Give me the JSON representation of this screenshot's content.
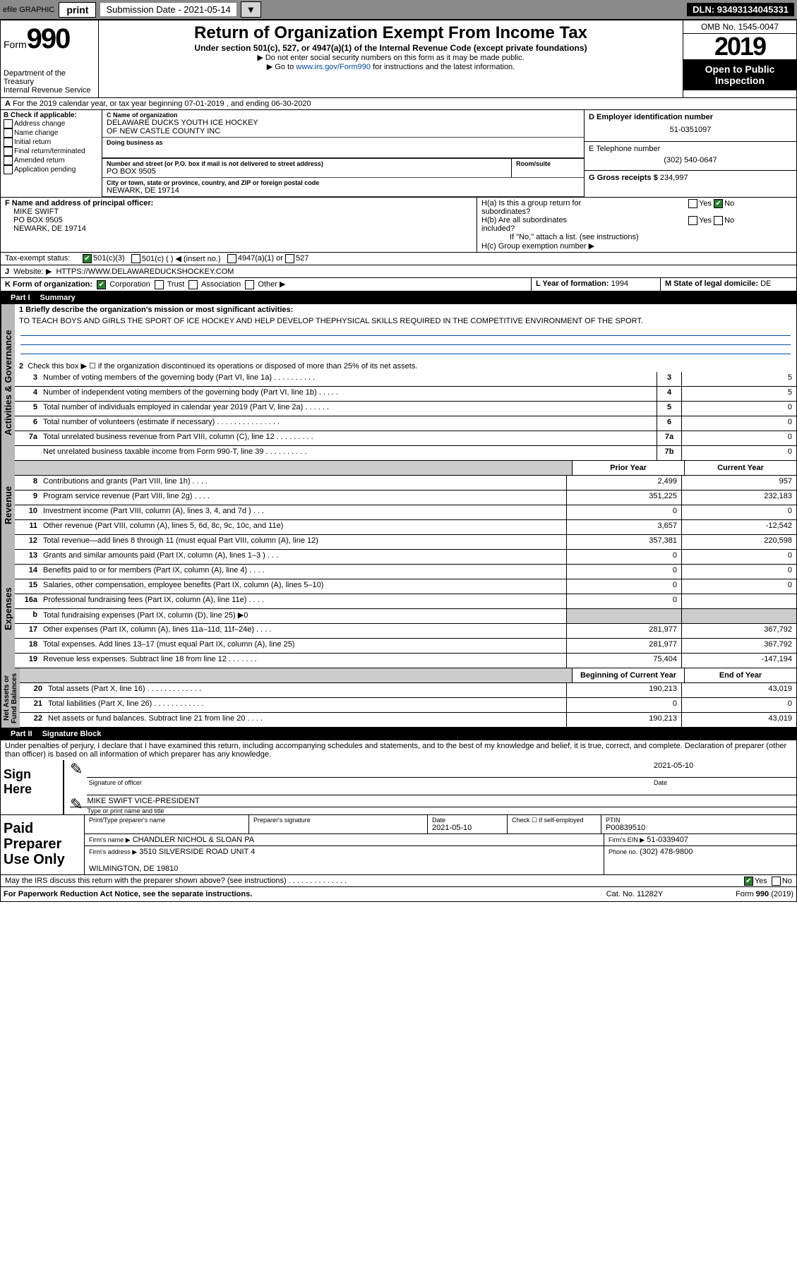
{
  "toolbar": {
    "efile": "efile GRAPHIC",
    "print": "print",
    "sub_label": "Submission Date - 2021-05-14",
    "dln": "DLN: 93493134045331"
  },
  "hdr": {
    "form_word": "Form",
    "form_num": "990",
    "title": "Return of Organization Exempt From Income Tax",
    "sub1": "Under section 501(c), 527, or 4947(a)(1) of the Internal Revenue Code (except private foundations)",
    "sub2": "▶ Do not enter social security numbers on this form as it may be made public.",
    "sub3_pre": "▶ Go to ",
    "sub3_link": "www.irs.gov/Form990",
    "sub3_post": " for instructions and the latest information.",
    "dept": "Department of the Treasury\nInternal Revenue Service",
    "omb": "OMB No. 1545-0047",
    "year": "2019",
    "open": "Open to Public\nInspection"
  },
  "A": {
    "text": "For the 2019 calendar year, or tax year beginning 07-01-2019    , and ending 06-30-2020"
  },
  "B": {
    "label": "B Check if applicable:",
    "items": [
      "Address change",
      "Name change",
      "Initial return",
      "Final return/terminated",
      "Amended return",
      "Application pending"
    ]
  },
  "C": {
    "name_lbl": "C Name of organization",
    "name": "DELAWARE DUCKS YOUTH ICE HOCKEY\nOF NEW CASTLE COUNTY INC",
    "dba_lbl": "Doing business as",
    "dba": "",
    "addr_lbl": "Number and street (or P.O. box if mail is not delivered to street address)",
    "room_lbl": "Room/suite",
    "addr": "PO BOX 9505",
    "city_lbl": "City or town, state or province, country, and ZIP or foreign postal code",
    "city": "NEWARK, DE  19714"
  },
  "D": {
    "lbl": "D Employer identification number",
    "val": "51-0351097"
  },
  "E": {
    "lbl": "E Telephone number",
    "val": "(302) 540-0647"
  },
  "G": {
    "lbl": "G Gross receipts $",
    "val": "234,997"
  },
  "F": {
    "lbl": "F  Name and address of principal officer:",
    "val": "MIKE SWIFT\nPO BOX 9505\nNEWARK, DE  19714"
  },
  "H": {
    "a": "H(a)  Is this a group return for\n         subordinates?",
    "b": "H(b)  Are all subordinates\n         included?",
    "note": "If \"No,\" attach a list. (see instructions)",
    "c": "H(c)  Group exemption number ▶"
  },
  "I": {
    "lbl": "Tax-exempt status:",
    "opts": [
      "501(c)(3)",
      "501(c) (  ) ◀ (insert no.)",
      "4947(a)(1) or",
      "527"
    ]
  },
  "J": {
    "lbl": "Website: ▶",
    "val": "HTTPS://WWW.DELAWAREDUCKSHOCKEY.COM"
  },
  "K": {
    "lbl": "K Form of organization:",
    "opts": [
      "Corporation",
      "Trust",
      "Association",
      "Other ▶"
    ]
  },
  "L": {
    "lbl": "L Year of formation:",
    "val": "1994"
  },
  "M": {
    "lbl": "M State of legal domicile:",
    "val": "DE"
  },
  "part1": {
    "num": "Part I",
    "title": "Summary"
  },
  "p1": {
    "l1": "1  Briefly describe the organization's mission or most significant activities:",
    "mission": "TO TEACH BOYS AND GIRLS THE SPORT OF ICE HOCKEY AND HELP DEVELOP THEPHYSICAL SKILLS REQUIRED IN THE COMPETITIVE ENVIRONMENT OF THE SPORT.",
    "l2": "Check this box ▶ ☐  if the organization discontinued its operations or disposed of more than 25% of its net assets.",
    "rows": [
      {
        "n": "3",
        "t": "Number of voting members of the governing body (Part VI, line 1a)  .   .   .   .   .   .   .   .   .   .",
        "b": "3",
        "v": "5"
      },
      {
        "n": "4",
        "t": "Number of independent voting members of the governing body (Part VI, line 1b)  .   .   .   .   .",
        "b": "4",
        "v": "5"
      },
      {
        "n": "5",
        "t": "Total number of individuals employed in calendar year 2019 (Part V, line 2a)  .   .   .   .   .   .",
        "b": "5",
        "v": "0"
      },
      {
        "n": "6",
        "t": "Total number of volunteers (estimate if necessary)    .   .   .   .   .   .   .   .   .   .   .   .   .   .   .",
        "b": "6",
        "v": "0"
      },
      {
        "n": "7a",
        "t": "Total unrelated business revenue from Part VIII, column (C), line 12   .   .   .   .   .   .   .   .   .",
        "b": "7a",
        "v": "0"
      },
      {
        "n": "",
        "t": "Net unrelated business taxable income from Form 990-T, line 39    .   .   .   .   .   .   .   .   .   .",
        "b": "7b",
        "v": "0"
      }
    ],
    "hdrs": {
      "prior": "Prior Year",
      "curr": "Current Year"
    },
    "rev": [
      {
        "n": "8",
        "t": "Contributions and grants (Part VIII, line 1h)   .    .   .   .",
        "p": "2,499",
        "c": "957"
      },
      {
        "n": "9",
        "t": "Program service revenue (Part VIII, line 2g)   .    .   .   .",
        "p": "351,225",
        "c": "232,183"
      },
      {
        "n": "10",
        "t": "Investment income (Part VIII, column (A), lines 3, 4, and 7d )    .    .    .",
        "p": "0",
        "c": "0"
      },
      {
        "n": "11",
        "t": "Other revenue (Part VIII, column (A), lines 5, 6d, 8c, 9c, 10c, and 11e)",
        "p": "3,657",
        "c": "-12,542"
      },
      {
        "n": "12",
        "t": "Total revenue—add lines 8 through 11 (must equal Part VIII, column (A), line 12)",
        "p": "357,381",
        "c": "220,598"
      }
    ],
    "exp": [
      {
        "n": "13",
        "t": "Grants and similar amounts paid (Part IX, column (A), lines 1–3 )   .    .    .",
        "p": "0",
        "c": "0"
      },
      {
        "n": "14",
        "t": "Benefits paid to or for members (Part IX, column (A), line 4)   .    .   .   .",
        "p": "0",
        "c": "0"
      },
      {
        "n": "15",
        "t": "Salaries, other compensation, employee benefits (Part IX, column (A), lines 5–10)",
        "p": "0",
        "c": "0"
      },
      {
        "n": "16a",
        "t": "Professional fundraising fees (Part IX, column (A), line 11e)   .    .   .   .",
        "p": "0",
        "c": ""
      },
      {
        "n": "b",
        "t": "Total fundraising expenses (Part IX, column (D), line 25) ▶0",
        "p": "",
        "c": "",
        "grey": true
      },
      {
        "n": "17",
        "t": "Other expenses (Part IX, column (A), lines 11a–11d, 11f–24e)   .    .   .   .",
        "p": "281,977",
        "c": "367,792"
      },
      {
        "n": "18",
        "t": "Total expenses. Add lines 13–17 (must equal Part IX, column (A), line 25)",
        "p": "281,977",
        "c": "367,792"
      },
      {
        "n": "19",
        "t": "Revenue less expenses. Subtract line 18 from line 12  .   .   .   .   .   .   .",
        "p": "75,404",
        "c": "-147,194"
      }
    ],
    "hdrs2": {
      "beg": "Beginning of Current Year",
      "end": "End of Year"
    },
    "net": [
      {
        "n": "20",
        "t": "Total assets (Part X, line 16)  .   .   .   .   .   .   .   .   .   .   .   .   .",
        "p": "190,213",
        "c": "43,019"
      },
      {
        "n": "21",
        "t": "Total liabilities (Part X, line 26)  .   .   .   .   .   .   .   .   .   .   .   .",
        "p": "0",
        "c": "0"
      },
      {
        "n": "22",
        "t": "Net assets or fund balances. Subtract line 21 from line 20   .    .   .   .",
        "p": "190,213",
        "c": "43,019"
      }
    ]
  },
  "sidelabels": {
    "act": "Activities & Governance",
    "rev": "Revenue",
    "exp": "Expenses",
    "net": "Net Assets or\nFund Balances"
  },
  "part2": {
    "num": "Part II",
    "title": "Signature Block"
  },
  "sig": {
    "decl": "Under penalties of perjury, I declare that I have examined this return, including accompanying schedules and statements, and to the best of my knowledge and belief, it is true, correct, and complete. Declaration of preparer (other than officer) is based on all information of which preparer has any knowledge.",
    "here": "Sign Here",
    "sig_lbl": "Signature of officer",
    "date": "2021-05-10",
    "date_lbl": "Date",
    "name": "MIKE SWIFT VICE-PRESIDENT",
    "name_lbl": "Type or print name and title"
  },
  "prep": {
    "label": "Paid Preparer Use Only",
    "c1": "Print/Type preparer's name",
    "c2": "Preparer's signature",
    "c3": "Date",
    "c3v": "2021-05-10",
    "c4": "Check ☐  if self-employed",
    "c5": "PTIN",
    "c5v": "P00839510",
    "firm_lbl": "Firm's name    ▶",
    "firm": "CHANDLER NICHOL & SLOAN PA",
    "ein_lbl": "Firm's EIN ▶",
    "ein": "51-0339407",
    "addr_lbl": "Firm's address ▶",
    "addr": "3510 SILVERSIDE ROAD UNIT 4\n\nWILMINGTON, DE  19810",
    "phone_lbl": "Phone no.",
    "phone": "(302) 478-9800",
    "irs_q": "May the IRS discuss this return with the preparer shown above? (see instructions)   .    .   .   .   .   .   .   .   .   .   .   .   .   .",
    "yes": "Yes",
    "no": "No"
  },
  "footer": {
    "l": "For Paperwork Reduction Act Notice, see the separate instructions.",
    "m": "Cat. No. 11282Y",
    "r": "Form 990 (2019)"
  }
}
